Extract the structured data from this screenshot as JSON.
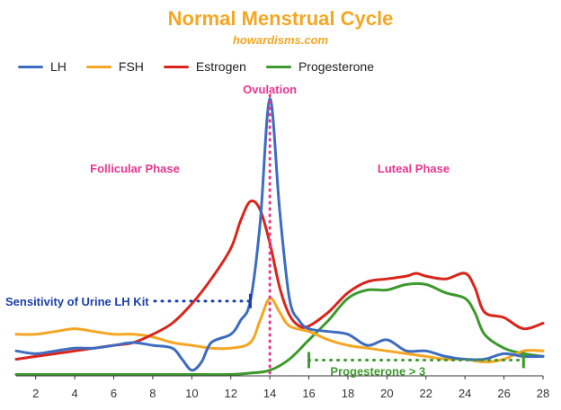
{
  "chart_data": {
    "type": "line",
    "title": "Normal Menstrual Cycle",
    "subtitle": "howardisms.com",
    "xlim": [
      1,
      28
    ],
    "ylim": [
      0,
      10
    ],
    "x_ticks": [
      2,
      4,
      6,
      8,
      10,
      12,
      14,
      16,
      18,
      20,
      22,
      24,
      26,
      28
    ],
    "grid": false,
    "legend_position": "top-left",
    "series": [
      {
        "name": "LH",
        "color": "#3d6cc0",
        "points": [
          [
            1,
            0.9
          ],
          [
            2,
            0.8
          ],
          [
            3,
            0.9
          ],
          [
            4,
            1.0
          ],
          [
            5,
            1.0
          ],
          [
            6,
            1.1
          ],
          [
            7,
            1.2
          ],
          [
            8,
            1.1
          ],
          [
            9,
            1.0
          ],
          [
            9.5,
            0.6
          ],
          [
            10,
            0.2
          ],
          [
            10.5,
            0.5
          ],
          [
            11,
            1.2
          ],
          [
            12,
            1.5
          ],
          [
            12.5,
            2.0
          ],
          [
            13,
            2.7
          ],
          [
            13.5,
            5.5
          ],
          [
            14,
            10.0
          ],
          [
            14.5,
            6.0
          ],
          [
            15,
            2.8
          ],
          [
            15.5,
            2.0
          ],
          [
            16,
            1.7
          ],
          [
            17,
            1.6
          ],
          [
            18,
            1.5
          ],
          [
            19,
            1.1
          ],
          [
            20,
            1.3
          ],
          [
            21,
            0.9
          ],
          [
            22,
            0.9
          ],
          [
            23,
            0.7
          ],
          [
            24,
            0.6
          ],
          [
            25,
            0.6
          ],
          [
            26,
            0.8
          ],
          [
            27,
            0.7
          ],
          [
            28,
            0.7
          ]
        ]
      },
      {
        "name": "FSH",
        "color": "#f5a623",
        "points": [
          [
            1,
            1.5
          ],
          [
            2,
            1.5
          ],
          [
            3,
            1.6
          ],
          [
            4,
            1.7
          ],
          [
            5,
            1.6
          ],
          [
            6,
            1.5
          ],
          [
            7,
            1.5
          ],
          [
            8,
            1.4
          ],
          [
            9,
            1.2
          ],
          [
            10,
            1.1
          ],
          [
            11,
            1.0
          ],
          [
            12,
            1.0
          ],
          [
            13,
            1.2
          ],
          [
            13.5,
            2.0
          ],
          [
            14,
            2.8
          ],
          [
            14.5,
            2.3
          ],
          [
            15,
            1.8
          ],
          [
            16,
            1.6
          ],
          [
            17,
            1.3
          ],
          [
            18,
            1.1
          ],
          [
            19,
            1.0
          ],
          [
            20,
            0.9
          ],
          [
            21,
            0.8
          ],
          [
            22,
            0.7
          ],
          [
            23,
            0.6
          ],
          [
            24,
            0.6
          ],
          [
            25,
            0.5
          ],
          [
            26,
            0.6
          ],
          [
            27,
            0.9
          ],
          [
            28,
            0.9
          ]
        ]
      },
      {
        "name": "Estrogen",
        "color": "#d9261c",
        "points": [
          [
            1,
            0.6
          ],
          [
            2,
            0.7
          ],
          [
            3,
            0.8
          ],
          [
            4,
            0.9
          ],
          [
            5,
            1.0
          ],
          [
            6,
            1.1
          ],
          [
            7,
            1.2
          ],
          [
            8,
            1.5
          ],
          [
            9,
            1.9
          ],
          [
            10,
            2.6
          ],
          [
            11,
            3.5
          ],
          [
            12,
            4.6
          ],
          [
            12.5,
            5.6
          ],
          [
            13,
            6.3
          ],
          [
            13.5,
            6.0
          ],
          [
            14,
            4.8
          ],
          [
            14.5,
            3.2
          ],
          [
            15,
            2.2
          ],
          [
            15.5,
            1.8
          ],
          [
            16,
            1.8
          ],
          [
            17,
            2.3
          ],
          [
            18,
            3.0
          ],
          [
            19,
            3.4
          ],
          [
            20,
            3.5
          ],
          [
            21,
            3.6
          ],
          [
            21.5,
            3.7
          ],
          [
            22,
            3.6
          ],
          [
            23,
            3.5
          ],
          [
            24,
            3.7
          ],
          [
            24.5,
            3.2
          ],
          [
            25,
            2.3
          ],
          [
            26,
            2.1
          ],
          [
            27,
            1.7
          ],
          [
            28,
            1.9
          ]
        ]
      },
      {
        "name": "Progesterone",
        "color": "#3c9a2c",
        "points": [
          [
            1,
            0.05
          ],
          [
            2,
            0.05
          ],
          [
            4,
            0.05
          ],
          [
            6,
            0.05
          ],
          [
            8,
            0.05
          ],
          [
            10,
            0.05
          ],
          [
            12,
            0.05
          ],
          [
            13,
            0.1
          ],
          [
            14,
            0.2
          ],
          [
            15,
            0.6
          ],
          [
            16,
            1.3
          ],
          [
            17,
            2.0
          ],
          [
            18,
            2.8
          ],
          [
            19,
            3.1
          ],
          [
            20,
            3.1
          ],
          [
            21,
            3.3
          ],
          [
            22,
            3.3
          ],
          [
            23,
            3.0
          ],
          [
            24,
            2.8
          ],
          [
            24.5,
            2.3
          ],
          [
            25,
            1.5
          ],
          [
            26,
            1.0
          ],
          [
            27,
            0.8
          ],
          [
            28,
            0.7
          ]
        ]
      }
    ],
    "annotations": {
      "ovulation": {
        "label": "Ovulation",
        "x": 14
      },
      "follicular": {
        "label": "Follicular Phase"
      },
      "luteal": {
        "label": "Luteal Phase"
      },
      "urine_kit": {
        "label": "Sensitivity of Urine LH Kit",
        "y": 2.7
      },
      "progesterone_threshold": {
        "label": "Progesterone > 3",
        "y": 0.7,
        "x_range": [
          16,
          27
        ]
      }
    }
  }
}
